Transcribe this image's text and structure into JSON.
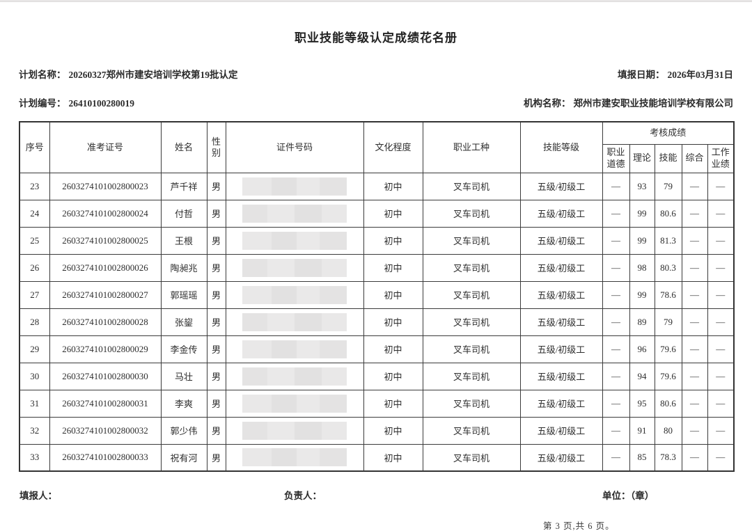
{
  "page": {
    "title": "职业技能等级认定成绩花名册",
    "meta": {
      "plan_name_label": "计划名称：",
      "plan_name": "20260327郑州市建安培训学校第19批认定",
      "fill_date_label": "填报日期：",
      "fill_date": "2026年03月31日",
      "plan_no_label": "计划编号：",
      "plan_no": "26410100280019",
      "org_label": "机构名称：",
      "org_name": "郑州市建安职业技能培训学校有限公司"
    },
    "footer": {
      "filler_label": "填报人：",
      "manager_label": "负责人：",
      "unit_label": "单位：（章）",
      "page_indicator": "第 3 页,共 6 页。"
    },
    "colors": {
      "border": "#3a3a3a",
      "redaction_gray": "#e6e5e5",
      "top_strip": "#e8e6e6"
    }
  },
  "table": {
    "headers": {
      "seq": "序号",
      "exam_no": "准考证号",
      "name": "姓名",
      "gender": "性别",
      "id_no": "证件号码",
      "education": "文化程度",
      "occupation": "职业工种",
      "skill_level": "技能等级",
      "score_group": "考核成绩",
      "score_ethics": "职业道德",
      "score_theory": "理论",
      "score_skill": "技能",
      "score_comprehensive": "综合",
      "score_work": "工作业绩"
    },
    "id_numbers_masked": true,
    "rows": [
      {
        "seq": "23",
        "exam_no": "2603274101002800023",
        "name": "芦千祥",
        "gender": "男",
        "education": "初中",
        "occupation": "叉车司机",
        "skill_level": "五级/初级工",
        "ethics": "—",
        "theory": "93",
        "skill": "79",
        "comprehensive": "—",
        "work": "—"
      },
      {
        "seq": "24",
        "exam_no": "2603274101002800024",
        "name": "付哲",
        "gender": "男",
        "education": "初中",
        "occupation": "叉车司机",
        "skill_level": "五级/初级工",
        "ethics": "—",
        "theory": "99",
        "skill": "80.6",
        "comprehensive": "—",
        "work": "—"
      },
      {
        "seq": "25",
        "exam_no": "2603274101002800025",
        "name": "王根",
        "gender": "男",
        "education": "初中",
        "occupation": "叉车司机",
        "skill_level": "五级/初级工",
        "ethics": "—",
        "theory": "99",
        "skill": "81.3",
        "comprehensive": "—",
        "work": "—"
      },
      {
        "seq": "26",
        "exam_no": "2603274101002800026",
        "name": "陶昶兆",
        "gender": "男",
        "education": "初中",
        "occupation": "叉车司机",
        "skill_level": "五级/初级工",
        "ethics": "—",
        "theory": "98",
        "skill": "80.3",
        "comprehensive": "—",
        "work": "—"
      },
      {
        "seq": "27",
        "exam_no": "2603274101002800027",
        "name": "郭瑶瑶",
        "gender": "男",
        "education": "初中",
        "occupation": "叉车司机",
        "skill_level": "五级/初级工",
        "ethics": "—",
        "theory": "99",
        "skill": "78.6",
        "comprehensive": "—",
        "work": "—"
      },
      {
        "seq": "28",
        "exam_no": "2603274101002800028",
        "name": "张鋆",
        "gender": "男",
        "education": "初中",
        "occupation": "叉车司机",
        "skill_level": "五级/初级工",
        "ethics": "—",
        "theory": "89",
        "skill": "79",
        "comprehensive": "—",
        "work": "—"
      },
      {
        "seq": "29",
        "exam_no": "2603274101002800029",
        "name": "李金传",
        "gender": "男",
        "education": "初中",
        "occupation": "叉车司机",
        "skill_level": "五级/初级工",
        "ethics": "—",
        "theory": "96",
        "skill": "79.6",
        "comprehensive": "—",
        "work": "—"
      },
      {
        "seq": "30",
        "exam_no": "2603274101002800030",
        "name": "马壮",
        "gender": "男",
        "education": "初中",
        "occupation": "叉车司机",
        "skill_level": "五级/初级工",
        "ethics": "—",
        "theory": "94",
        "skill": "79.6",
        "comprehensive": "—",
        "work": "—"
      },
      {
        "seq": "31",
        "exam_no": "2603274101002800031",
        "name": "李爽",
        "gender": "男",
        "education": "初中",
        "occupation": "叉车司机",
        "skill_level": "五级/初级工",
        "ethics": "—",
        "theory": "95",
        "skill": "80.6",
        "comprehensive": "—",
        "work": "—"
      },
      {
        "seq": "32",
        "exam_no": "2603274101002800032",
        "name": "郭少伟",
        "gender": "男",
        "education": "初中",
        "occupation": "叉车司机",
        "skill_level": "五级/初级工",
        "ethics": "—",
        "theory": "91",
        "skill": "80",
        "comprehensive": "—",
        "work": "—"
      },
      {
        "seq": "33",
        "exam_no": "2603274101002800033",
        "name": "祝有河",
        "gender": "男",
        "education": "初中",
        "occupation": "叉车司机",
        "skill_level": "五级/初级工",
        "ethics": "—",
        "theory": "85",
        "skill": "78.3",
        "comprehensive": "—",
        "work": "—"
      }
    ]
  }
}
